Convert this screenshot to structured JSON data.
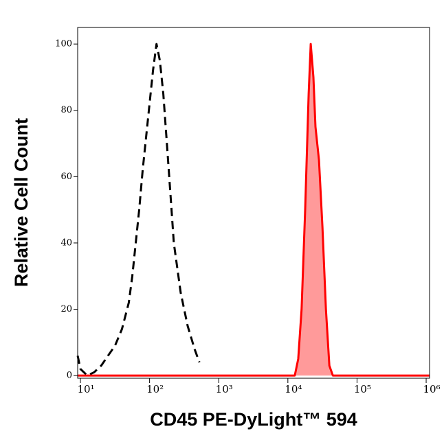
{
  "chart_data": {
    "type": "histogram-line",
    "x_label": "CD45 PE-DyLight™ 594",
    "y_label": "Relative Cell Count",
    "xscale": "log",
    "xlim": [
      9.12,
      1120000
    ],
    "ylim": [
      -0.8,
      105
    ],
    "xticks": [
      {
        "value": 10,
        "label": "10¹"
      },
      {
        "value": 100,
        "label": "10²"
      },
      {
        "value": 1000,
        "label": "10³"
      },
      {
        "value": 10000,
        "label": "10⁴"
      },
      {
        "value": 100000,
        "label": "10⁵"
      },
      {
        "value": 1000000,
        "label": "10⁶"
      }
    ],
    "yticks": [
      0,
      20,
      40,
      60,
      80,
      100
    ],
    "series": [
      {
        "color": "#000000",
        "dashed": true,
        "filled": false,
        "x": [
          9.12,
          10,
          12.6,
          15.8,
          20,
          25.1,
          31.6,
          39.8,
          50.1,
          56.2,
          63.1,
          70.8,
          79.4,
          89.1,
          100,
          112,
          126,
          141,
          158,
          178,
          200,
          224,
          282,
          355,
          447,
          525
        ],
        "values": [
          6,
          2,
          0,
          1,
          3,
          6,
          9,
          14,
          22,
          30,
          40,
          50,
          62,
          72,
          82,
          92,
          100,
          95,
          85,
          70,
          55,
          40,
          25,
          15,
          8,
          4
        ]
      },
      {
        "color": "#ff0000",
        "dashed": false,
        "filled": true,
        "fill": "#ff9a9a",
        "x": [
          9.12,
          12600,
          14100,
          15800,
          17800,
          20000,
          21400,
          23400,
          25100,
          28200,
          31600,
          35500,
          39800,
          44700,
          1120000
        ],
        "values": [
          0,
          0,
          5,
          20,
          50,
          85,
          100,
          90,
          75,
          65,
          45,
          20,
          3,
          0,
          0
        ]
      }
    ]
  }
}
